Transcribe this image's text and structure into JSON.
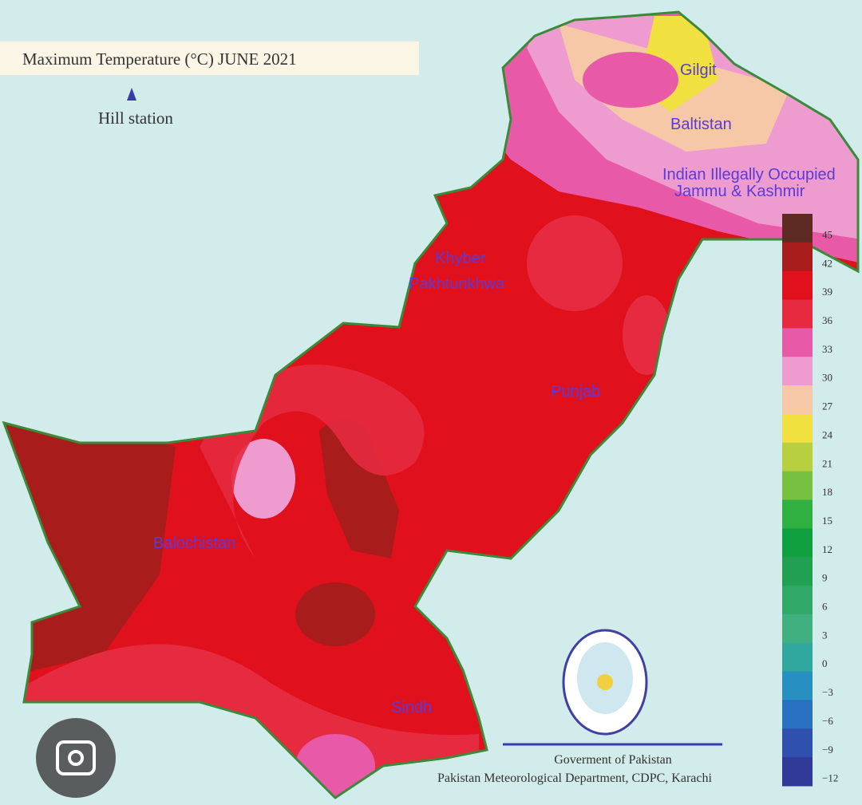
{
  "title": "Maximum Temperature (°C) JUNE 2021",
  "legend_marker": "Hill station",
  "regions": [
    "Gilgit",
    "Baltistan",
    "Indian Illegally Occupied",
    "Jammu & Kashmir",
    "Khyber",
    "Pakhtunkhwa",
    "Punjab",
    "Balochistan",
    "Sindh"
  ],
  "scale": {
    "ticks": [
      45,
      42,
      39,
      36,
      33,
      30,
      27,
      24,
      21,
      18,
      15,
      12,
      9,
      6,
      3,
      0,
      {
        "value": -3,
        "label": "−3"
      },
      {
        "value": -6,
        "label": "−6"
      },
      {
        "value": -9,
        "label": "−9"
      },
      {
        "value": -12,
        "label": "−12"
      }
    ],
    "colors": [
      "#5e2a24",
      "#a81c1c",
      "#e0101c",
      "#e62a40",
      "#e85aa8",
      "#ee9cd0",
      "#f6c8a8",
      "#f0e040",
      "#b8d040",
      "#78c040",
      "#30b040",
      "#10a040",
      "#20a050",
      "#30a868",
      "#40b080",
      "#30a8a0",
      "#2890c0",
      "#2870c0",
      "#3050b0",
      "#303898"
    ]
  },
  "footer": {
    "line1": "Goverment of Pakistan",
    "line2": "Pakistan Meteorological Department, CDPC, Karachi"
  }
}
